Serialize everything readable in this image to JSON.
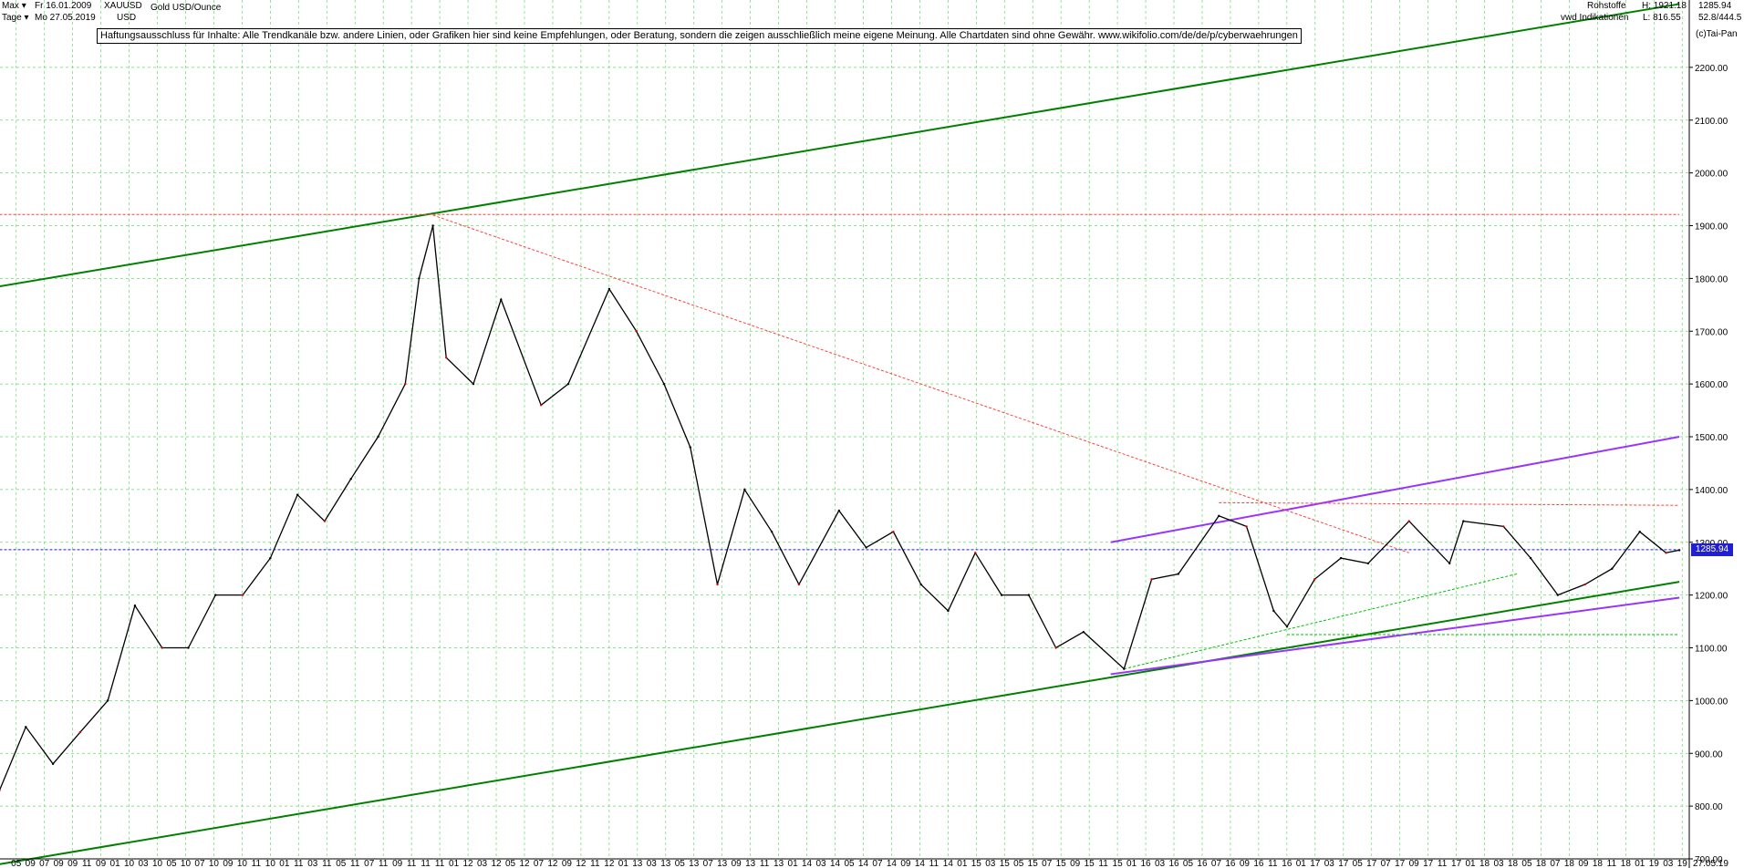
{
  "header": {
    "range_mode": "Max",
    "interval_mode": "Tage",
    "start_date": "Fr 16.01.2009",
    "end_date": "Mo 27.05.2019",
    "symbol": "XAUUSD",
    "currency": "USD",
    "instrument_name": "Gold USD/Ounce",
    "category": "Rohstoffe",
    "source": "vwd Indikationen",
    "high_label": "H: 1921.18",
    "low_label": "L: 816.55",
    "last_value": "1285.94",
    "range_info": "52.8/444.5",
    "copyright": "(c)Tai-Pan"
  },
  "disclaimer": "Haftungsausschluss für Inhalte: Alle Trendkanäle bzw. andere Linien, oder Grafiken hier sind keine Empfehlungen, oder Beratung, sondern die zeigen ausschließlich meine eigene Meinung. Alle Chartdaten sind ohne Gewähr.  www.wikifolio.com/de/de/p/cyberwaehrungen",
  "chart_data": {
    "type": "line",
    "title": "Gold USD/Ounce",
    "ylim": [
      700,
      2300
    ],
    "y_ticks": [
      700,
      800,
      900,
      1000,
      1100,
      1200,
      1300,
      1400,
      1500,
      1600,
      1700,
      1800,
      1900,
      2000,
      2100,
      2200
    ],
    "x_tick_labels": [
      "05",
      "09",
      "07",
      "09",
      "09",
      "11",
      "09",
      "01",
      "10",
      "03",
      "10",
      "05",
      "10",
      "07",
      "10",
      "09",
      "10",
      "11",
      "10",
      "01",
      "11",
      "03",
      "11",
      "05",
      "11",
      "07",
      "11",
      "09",
      "11",
      "11",
      "11",
      "01",
      "12",
      "03",
      "12",
      "05",
      "12",
      "07",
      "12",
      "09",
      "12",
      "11",
      "12",
      "01",
      "13",
      "03",
      "13",
      "05",
      "13",
      "07",
      "13",
      "09",
      "13",
      "11",
      "13",
      "01",
      "14",
      "03",
      "14",
      "05",
      "14",
      "07",
      "14",
      "09",
      "14",
      "11",
      "14",
      "01",
      "15",
      "03",
      "15",
      "05",
      "15",
      "07",
      "15",
      "09",
      "15",
      "11",
      "15",
      "01",
      "16",
      "03",
      "16",
      "05",
      "16",
      "07",
      "16",
      "09",
      "16",
      "11",
      "16",
      "01",
      "17",
      "03",
      "17",
      "05",
      "17",
      "07",
      "17",
      "09",
      "17",
      "11",
      "17",
      "01",
      "18",
      "03",
      "18",
      "05",
      "18",
      "07",
      "18",
      "09",
      "18",
      "11",
      "18",
      "01",
      "19",
      "03",
      "19"
    ],
    "end_label": "27.05.19",
    "current_price": 1285.94,
    "high_price": 1921.18,
    "grid": true,
    "series": [
      {
        "name": "Gold USD/Ounce",
        "x": [
          "2009-01",
          "2009-03",
          "2009-05",
          "2009-07",
          "2009-09",
          "2009-11",
          "2010-01",
          "2010-03",
          "2010-05",
          "2010-07",
          "2010-09",
          "2010-11",
          "2011-01",
          "2011-03",
          "2011-05",
          "2011-07",
          "2011-08",
          "2011-09",
          "2011-10",
          "2011-12",
          "2012-02",
          "2012-05",
          "2012-07",
          "2012-10",
          "2012-12",
          "2013-02",
          "2013-04",
          "2013-06",
          "2013-08",
          "2013-10",
          "2013-12",
          "2014-03",
          "2014-05",
          "2014-07",
          "2014-09",
          "2014-11",
          "2015-01",
          "2015-03",
          "2015-05",
          "2015-07",
          "2015-09",
          "2015-12",
          "2016-02",
          "2016-04",
          "2016-07",
          "2016-09",
          "2016-11",
          "2016-12",
          "2017-02",
          "2017-04",
          "2017-06",
          "2017-09",
          "2017-12",
          "2018-01",
          "2018-04",
          "2018-06",
          "2018-08",
          "2018-10",
          "2018-12",
          "2019-02",
          "2019-04",
          "2019-05"
        ],
        "values": [
          830,
          950,
          880,
          940,
          1000,
          1180,
          1100,
          1100,
          1200,
          1200,
          1270,
          1390,
          1340,
          1420,
          1500,
          1600,
          1800,
          1900,
          1650,
          1600,
          1760,
          1560,
          1600,
          1780,
          1700,
          1600,
          1480,
          1220,
          1400,
          1320,
          1220,
          1360,
          1290,
          1320,
          1220,
          1170,
          1280,
          1200,
          1200,
          1100,
          1130,
          1060,
          1230,
          1240,
          1350,
          1330,
          1170,
          1140,
          1230,
          1270,
          1260,
          1340,
          1260,
          1340,
          1330,
          1270,
          1200,
          1220,
          1250,
          1320,
          1280,
          1285
        ]
      }
    ],
    "trendlines": [
      {
        "name": "",
        "style": "solid",
        "color": "#008000",
        "points": [
          [
            "2009-01",
            1785
          ],
          [
            "2019-05",
            2320
          ]
        ]
      },
      {
        "name": "",
        "style": "solid",
        "color": "#008000",
        "points": [
          [
            "2009-01",
            690
          ],
          [
            "2019-05",
            1225
          ]
        ]
      },
      {
        "name": "",
        "style": "solid",
        "color": "#9933ff",
        "points": [
          [
            "2015-11",
            1050
          ],
          [
            "2019-05",
            1195
          ]
        ]
      },
      {
        "name": "",
        "style": "solid",
        "color": "#9933ff",
        "points": [
          [
            "2015-11",
            1300
          ],
          [
            "2019-05",
            1500
          ]
        ]
      },
      {
        "name": "",
        "style": "dashed",
        "color": "#ff4040",
        "points": [
          [
            "2011-09",
            1920
          ],
          [
            "2017-09",
            1280
          ]
        ]
      },
      {
        "name": "",
        "style": "dashed",
        "color": "#ff4040",
        "points": [
          [
            "2009-01",
            1921.18
          ],
          [
            "2019-05",
            1921.18
          ]
        ]
      },
      {
        "name": "",
        "style": "dashed",
        "color": "#ff4040",
        "points": [
          [
            "2016-07",
            1375
          ],
          [
            "2019-05",
            1370
          ]
        ]
      },
      {
        "name": "",
        "style": "dashed",
        "color": "#00c000",
        "points": [
          [
            "2015-12",
            1060
          ],
          [
            "2018-05",
            1240
          ]
        ]
      },
      {
        "name": "",
        "style": "dashed",
        "color": "#00c000",
        "points": [
          [
            "2016-12",
            1125
          ],
          [
            "2019-05",
            1125
          ]
        ]
      },
      {
        "name": "",
        "style": "dashed",
        "color": "#2020d0",
        "points": [
          [
            "2009-01",
            1285.94
          ],
          [
            "2019-05",
            1285.94
          ]
        ]
      }
    ]
  }
}
